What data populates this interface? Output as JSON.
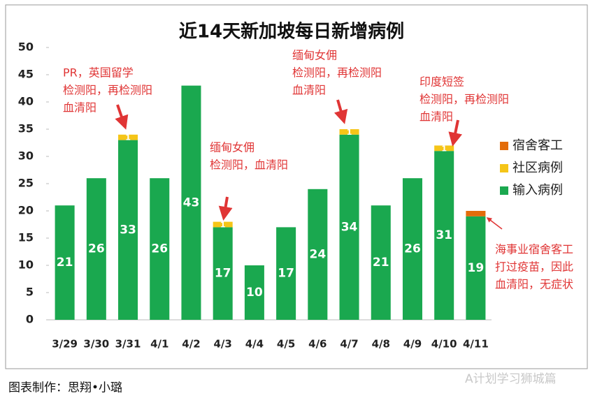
{
  "chart_data": {
    "type": "bar",
    "stacked": true,
    "title": "近14天新加坡每日新增病例",
    "categories": [
      "3/29",
      "3/30",
      "3/31",
      "4/1",
      "4/2",
      "4/3",
      "4/4",
      "4/5",
      "4/6",
      "4/7",
      "4/8",
      "4/9",
      "4/10",
      "4/11"
    ],
    "series": [
      {
        "name": "输入病例",
        "color": "#1aa84f",
        "values": [
          21,
          26,
          33,
          26,
          43,
          17,
          10,
          17,
          24,
          34,
          21,
          26,
          31,
          19
        ]
      },
      {
        "name": "社区病例",
        "color": "#f5c518",
        "values": [
          null,
          null,
          1,
          null,
          null,
          1,
          null,
          null,
          null,
          1,
          null,
          null,
          1,
          null
        ]
      },
      {
        "name": "宿舍客工",
        "color": "#e36c0a",
        "values": [
          null,
          null,
          null,
          null,
          null,
          null,
          null,
          null,
          null,
          null,
          null,
          null,
          null,
          1
        ]
      }
    ],
    "ylim": [
      0,
      50
    ],
    "yticks": [
      0,
      5,
      10,
      15,
      20,
      25,
      30,
      35,
      40,
      45,
      50
    ],
    "grid": false,
    "legend": "right",
    "annotations": [
      {
        "lines": [
          "PR，英国留学",
          "检测阳，再检测阳",
          "血清阳"
        ]
      },
      {
        "lines": [
          "缅甸女佣",
          "检测阳，血清阳"
        ]
      },
      {
        "lines": [
          "缅甸女佣",
          "检测阳，再检测阳",
          "血清阳"
        ]
      },
      {
        "lines": [
          "印度短签",
          "检测阳，再检测阳",
          "血清阳"
        ]
      },
      {
        "lines": [
          "海事业宿舍客工",
          "打过疫苗，因此",
          "血清阳，无症状"
        ]
      }
    ]
  },
  "footer": "图表制作：思翔•小璐",
  "watermark": "A计划学习狮城篇"
}
